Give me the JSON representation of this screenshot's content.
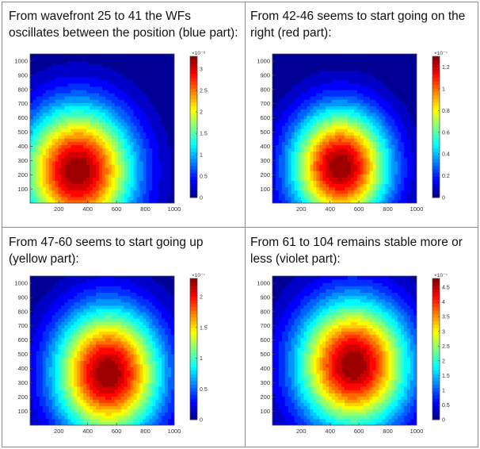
{
  "captions": [
    "From wavefront 25 to 41 the WFs oscillates between the position (blue part):",
    "From 42-46 seems to start going on the right (red part):",
    "From 47-60 seems to start going up (yellow part):",
    "From 61 to 104 remains stable more or less (violet part):"
  ],
  "colormap": "jet",
  "chart_data": [
    {
      "type": "heatmap",
      "style": "filled contour",
      "x_ticks": [
        200,
        400,
        600,
        800,
        1000
      ],
      "y_ticks": [
        100,
        200,
        300,
        400,
        500,
        600,
        700,
        800,
        900,
        1000
      ],
      "x_range": [
        1,
        1000
      ],
      "y_range": [
        1,
        1050
      ],
      "colorbar": {
        "exponent": "×10⁻⁸",
        "ticks": [
          0,
          0.5,
          1,
          1.5,
          2,
          2.5,
          3
        ],
        "tick_labels": [
          "0",
          "0.5",
          "1",
          "1.5",
          "2",
          "2.5",
          "3"
        ],
        "range": [
          0,
          3.3
        ]
      },
      "peak": {
        "x": 330,
        "y": 230,
        "value": 3.3
      },
      "spread": {
        "x": 480,
        "y": 560
      },
      "secondary_low": {
        "x": 980,
        "y": 780,
        "value": 0.3
      }
    },
    {
      "type": "heatmap",
      "style": "filled contour",
      "x_ticks": [
        200,
        400,
        600,
        800,
        1000
      ],
      "y_ticks": [
        100,
        200,
        300,
        400,
        500,
        600,
        700,
        800,
        900,
        1000
      ],
      "x_range": [
        1,
        1000
      ],
      "y_range": [
        1,
        1050
      ],
      "colorbar": {
        "exponent": "×10⁻⁷",
        "ticks": [
          0,
          0.2,
          0.4,
          0.6,
          0.8,
          1,
          1.2
        ],
        "tick_labels": [
          "0",
          "0.2",
          "0.4",
          "0.6",
          "0.8",
          "1",
          "1.2"
        ],
        "range": [
          0,
          1.3
        ]
      },
      "peak": {
        "x": 470,
        "y": 260,
        "value": 1.3
      },
      "spread": {
        "x": 420,
        "y": 500
      },
      "secondary_low": {
        "x": 120,
        "y": 1000,
        "value": 0.05
      }
    },
    {
      "type": "heatmap",
      "style": "filled contour",
      "x_ticks": [
        200,
        400,
        600,
        800,
        1000
      ],
      "y_ticks": [
        100,
        200,
        300,
        400,
        500,
        600,
        700,
        800,
        900,
        1000
      ],
      "x_range": [
        1,
        1000
      ],
      "y_range": [
        1,
        1050
      ],
      "colorbar": {
        "exponent": "×10⁻⁷",
        "ticks": [
          0,
          0.5,
          1,
          1.5,
          2
        ],
        "tick_labels": [
          "0",
          "0.5",
          "1",
          "1.5",
          "2"
        ],
        "range": [
          0,
          2.3
        ]
      },
      "peak": {
        "x": 540,
        "y": 370,
        "value": 2.3
      },
      "spread": {
        "x": 460,
        "y": 560
      },
      "secondary_low": {
        "x": 150,
        "y": 1020,
        "value": 0.05
      }
    },
    {
      "type": "heatmap",
      "style": "filled contour",
      "x_ticks": [
        200,
        400,
        600,
        800,
        1000
      ],
      "y_ticks": [
        100,
        200,
        300,
        400,
        500,
        600,
        700,
        800,
        900,
        1000
      ],
      "x_range": [
        1,
        1000
      ],
      "y_range": [
        1,
        1050
      ],
      "colorbar": {
        "exponent": "×10⁻⁷",
        "ticks": [
          0,
          0.5,
          1,
          1.5,
          2,
          2.5,
          3,
          3.5,
          4,
          4.5
        ],
        "tick_labels": [
          "0",
          "0.5",
          "1",
          "1.5",
          "2",
          "2.5",
          "3",
          "3.5",
          "4",
          "4.5"
        ],
        "range": [
          0,
          4.8
        ]
      },
      "peak": {
        "x": 560,
        "y": 430,
        "value": 4.8
      },
      "spread": {
        "x": 480,
        "y": 560
      },
      "secondary_low": {
        "x": 120,
        "y": 1020,
        "value": 0.1
      }
    }
  ]
}
